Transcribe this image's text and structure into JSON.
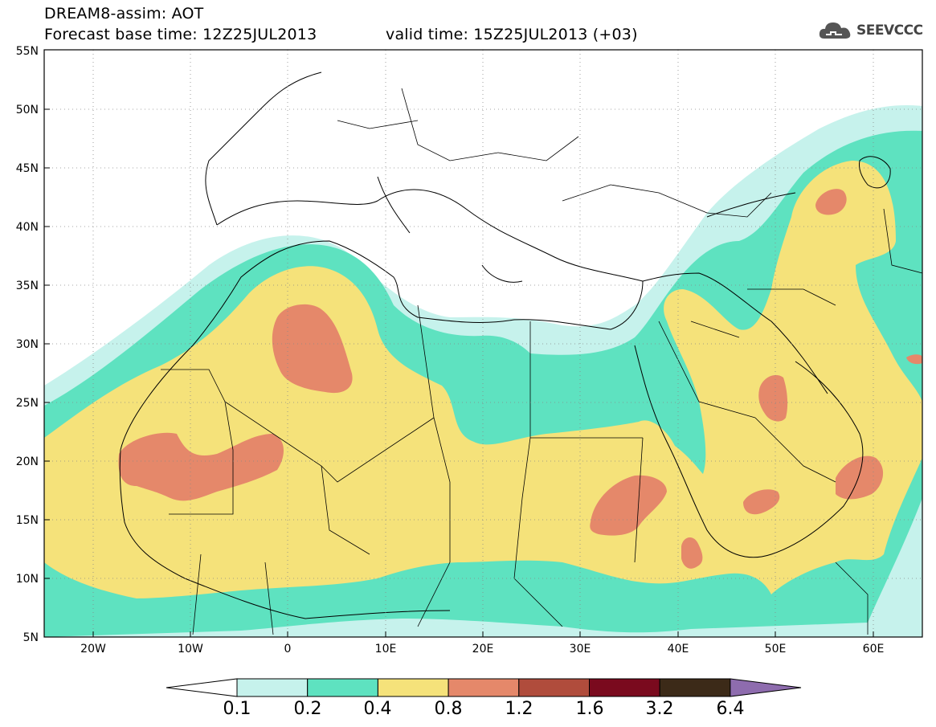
{
  "header": {
    "title": "DREAM8-assim: AOT",
    "base_time": "Forecast base time: 12Z25JUL2013",
    "valid_time": "valid time: 15Z25JUL2013 (+03)",
    "logo_text": "SEEVCCC"
  },
  "map": {
    "projection": "lat-lon",
    "lon_range": [
      -25,
      65
    ],
    "lat_range": [
      5,
      55
    ],
    "lat_labels": [
      "55N",
      "50N",
      "45N",
      "40N",
      "35N",
      "30N",
      "25N",
      "20N",
      "15N",
      "10N",
      "5N"
    ],
    "lon_labels": [
      "20W",
      "10W",
      "0",
      "10E",
      "20E",
      "30E",
      "40E",
      "50E",
      "60E"
    ],
    "grid": "dotted"
  },
  "colorbar": {
    "labels": [
      "0.1",
      "0.2",
      "0.4",
      "0.8",
      "1.2",
      "1.6",
      "3.2",
      "6.4"
    ],
    "colors": [
      "#ffffff",
      "#c6f2ec",
      "#5ee2c0",
      "#f5e27a",
      "#e5886a",
      "#b04c3c",
      "#7a0a1e",
      "#3c2a18",
      "#8e6cae"
    ]
  }
}
